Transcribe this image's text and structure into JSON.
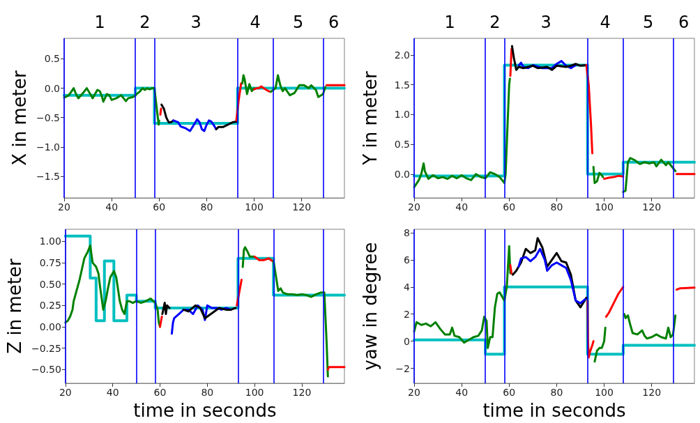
{
  "chart_data": [
    {
      "type": "line",
      "ylabel": "X in meter",
      "xlim": [
        20,
        138
      ],
      "xticks": [
        20,
        40,
        60,
        80,
        100,
        120
      ],
      "ylim": [
        -1.87,
        0.85
      ],
      "yticks": [
        {
          "value": -1.5,
          "label": "−1.5"
        },
        {
          "value": -1,
          "label": "−1.0"
        },
        {
          "value": -0.5,
          "label": "−0.5"
        },
        {
          "value": 0,
          "label": "0.0"
        },
        {
          "value": 0.5,
          "label": "0.5"
        }
      ],
      "marker": "none",
      "grid": false,
      "ref_lines": [
        {
          "axis": "x",
          "value": 20,
          "color": "#0000ff"
        },
        {
          "axis": "x",
          "value": 50,
          "color": "#0000ff"
        },
        {
          "axis": "x",
          "value": 58,
          "color": "#0000ff"
        },
        {
          "axis": "x",
          "value": 93,
          "color": "#0000ff"
        },
        {
          "axis": "x",
          "value": 108,
          "color": "#0000ff"
        },
        {
          "axis": "x",
          "value": 129,
          "color": "#0000ff"
        }
      ],
      "annotations": [
        "1",
        "2",
        "3",
        "4",
        "5",
        "6"
      ],
      "series": [
        {
          "type": "step",
          "color": "#00bfbf",
          "x": [
            20,
            50,
            58,
            93,
            138
          ],
          "values": [
            -0.12,
            0,
            -0.6,
            0,
            0
          ]
        },
        {
          "color": "#008000",
          "x": [
            20,
            22,
            24,
            25,
            26,
            28,
            29.5,
            31,
            32,
            34,
            35,
            36,
            36.5,
            38,
            39,
            40,
            42,
            44,
            46,
            47,
            49,
            50,
            52,
            53,
            54,
            55,
            56,
            57,
            58,
            59,
            59.8,
            60
          ],
          "values": [
            -0.16,
            -0.12,
            0,
            -0.1,
            -0.17,
            -0.08,
            0,
            -0.1,
            -0.17,
            -0.03,
            -0.05,
            -0.15,
            -0.23,
            -0.1,
            -0.12,
            -0.2,
            -0.17,
            -0.12,
            -0.22,
            -0.17,
            -0.15,
            -0.12,
            -0.05,
            0,
            -0.03,
            0,
            -0.02,
            0,
            0,
            -0.35,
            -0.62,
            -0.55
          ]
        },
        {
          "color": "#ff0000",
          "x": [
            60.5,
            60.8
          ],
          "values": [
            -0.45,
            -0.35
          ]
        },
        {
          "color": "#000000",
          "x": [
            61,
            62,
            63,
            64,
            65,
            66
          ],
          "values": [
            -0.28,
            -0.35,
            -0.5,
            -0.58,
            -0.58,
            -0.55
          ]
        },
        {
          "color": "#0000ff",
          "x": [
            66,
            68,
            69,
            71,
            73,
            75,
            76,
            77,
            78,
            79,
            80,
            81,
            82,
            83,
            84
          ],
          "values": [
            -0.55,
            -0.58,
            -0.65,
            -0.68,
            -0.73,
            -0.6,
            -0.53,
            -0.58,
            -0.7,
            -0.73,
            -0.62,
            -0.55,
            -0.57,
            -0.63,
            -0.7
          ]
        },
        {
          "color": "#000000",
          "x": [
            84,
            85,
            87,
            89,
            91,
            92.5
          ],
          "values": [
            -0.7,
            -0.66,
            -0.66,
            -0.62,
            -0.58,
            -0.57
          ]
        },
        {
          "color": "#ff0000",
          "x": [
            92.5,
            93.5,
            94.5
          ],
          "values": [
            -0.55,
            -0.2,
            0.08
          ]
        },
        {
          "color": "#008000",
          "x": [
            95,
            95.5,
            96,
            97,
            98,
            99,
            100
          ],
          "values": [
            0.08,
            0.22,
            0.15,
            -0.1,
            0.07,
            -0.05,
            0
          ]
        },
        {
          "color": "#ff0000",
          "x": [
            100,
            101,
            102,
            103,
            104,
            106,
            107
          ],
          "values": [
            -0.02,
            0,
            0,
            0.03,
            0,
            -0.05,
            -0.06
          ]
        },
        {
          "color": "#008000",
          "x": [
            107,
            108,
            109,
            110,
            111,
            112,
            113,
            115,
            117,
            119,
            121,
            123,
            124,
            126,
            127,
            129,
            130
          ],
          "values": [
            -0.06,
            -0.03,
            0,
            0.22,
            0.05,
            -0.05,
            0,
            -0.12,
            -0.08,
            0.05,
            0.05,
            0,
            0.05,
            -0.03,
            -0.15,
            -0.1,
            0.02
          ]
        },
        {
          "color": "#ff0000",
          "x": [
            130.5,
            138
          ],
          "values": [
            0.05,
            0.05
          ]
        }
      ]
    },
    {
      "type": "line",
      "ylabel": "Y in meter",
      "xlim": [
        20,
        138
      ],
      "xticks": [
        20,
        40,
        60,
        80,
        100,
        120
      ],
      "ylim": [
        -0.4,
        2.28
      ],
      "yticks": [
        {
          "value": 0,
          "label": "0.0"
        },
        {
          "value": 0.5,
          "label": "0.5"
        },
        {
          "value": 1,
          "label": "1.0"
        },
        {
          "value": 1.5,
          "label": "1.5"
        },
        {
          "value": 2,
          "label": "2.0"
        }
      ],
      "marker": "none",
      "grid": false,
      "ref_lines": [
        {
          "axis": "x",
          "value": 20,
          "color": "#0000ff"
        },
        {
          "axis": "x",
          "value": 50,
          "color": "#0000ff"
        },
        {
          "axis": "x",
          "value": 58,
          "color": "#0000ff"
        },
        {
          "axis": "x",
          "value": 93,
          "color": "#0000ff"
        },
        {
          "axis": "x",
          "value": 108,
          "color": "#0000ff"
        },
        {
          "axis": "x",
          "value": 129,
          "color": "#0000ff"
        }
      ],
      "annotations": [
        "1",
        "2",
        "3",
        "4",
        "5",
        "6"
      ],
      "series": [
        {
          "type": "step",
          "color": "#00bfbf",
          "x": [
            20,
            58,
            93,
            108,
            138
          ],
          "values": [
            -0.03,
            1.83,
            0,
            0.2,
            0.2
          ]
        },
        {
          "color": "#008000",
          "x": [
            20,
            22,
            23,
            24,
            24.5,
            26,
            28,
            30,
            32,
            34,
            36,
            38,
            40,
            42,
            44,
            46,
            48,
            50,
            52,
            54,
            56,
            58,
            58.5,
            59,
            59.5,
            60,
            60.3
          ],
          "values": [
            -0.22,
            -0.1,
            0,
            0.18,
            0.05,
            -0.08,
            -0.02,
            -0.07,
            -0.05,
            -0.08,
            -0.03,
            -0.07,
            -0.02,
            -0.07,
            -0.1,
            0,
            -0.05,
            -0.07,
            0.03,
            0,
            -0.05,
            -0.15,
            0,
            0.5,
            1,
            1.5,
            1.6
          ]
        },
        {
          "color": "#ff0000",
          "x": [
            60.5,
            61
          ],
          "values": [
            1.65,
            2.1
          ]
        },
        {
          "color": "#0000ff",
          "x": [
            64,
            65,
            66,
            68,
            70,
            74,
            78,
            80,
            82,
            84,
            86,
            88
          ],
          "values": [
            1.82,
            1.87,
            1.8,
            1.78,
            1.83,
            1.78,
            1.78,
            1.85,
            1.9,
            1.82,
            1.78,
            1.83
          ]
        },
        {
          "color": "#000000",
          "x": [
            61.2,
            62,
            63,
            64,
            66,
            70,
            72,
            76,
            78,
            80,
            84,
            86,
            88,
            90,
            92.5
          ],
          "values": [
            2.15,
            1.95,
            1.75,
            1.8,
            1.78,
            1.82,
            1.78,
            1.8,
            1.75,
            1.82,
            1.8,
            1.82,
            1.85,
            1.82,
            1.83
          ]
        },
        {
          "color": "#ff0000",
          "x": [
            92.5,
            93.5,
            94.5,
            95
          ],
          "values": [
            1.83,
            1.5,
            0.8,
            0.35
          ]
        },
        {
          "color": "#008000",
          "x": [
            95.5,
            96,
            97,
            98,
            99,
            99.5
          ],
          "values": [
            0.12,
            -0.15,
            -0.12,
            0.02,
            -0.02,
            -0.05
          ]
        },
        {
          "color": "#ff0000",
          "x": [
            100,
            102,
            104,
            106,
            108
          ],
          "values": [
            -0.08,
            -0.06,
            -0.05,
            -0.03,
            -0.04
          ]
        },
        {
          "color": "#008000",
          "x": [
            108,
            109,
            110,
            111,
            113,
            115,
            117,
            119,
            121,
            122,
            124,
            126,
            127,
            129,
            130
          ],
          "values": [
            -0.3,
            -0.28,
            0.2,
            0.27,
            0.23,
            0.17,
            0.2,
            0.18,
            0.2,
            0.13,
            0.24,
            0.15,
            0.2,
            0.1,
            0.05
          ]
        },
        {
          "color": "#ff0000",
          "x": [
            130.5,
            138
          ],
          "values": [
            0,
            0
          ]
        }
      ]
    },
    {
      "type": "line",
      "ylabel": "Z in meter",
      "xlabel": "time in seconds",
      "xlim": [
        20,
        138
      ],
      "xticks": [
        20,
        40,
        60,
        80,
        100,
        120
      ],
      "ylim": [
        -0.66,
        1.14
      ],
      "yticks": [
        {
          "value": -0.5,
          "label": "−0.50"
        },
        {
          "value": -0.25,
          "label": "−0.25"
        },
        {
          "value": 0,
          "label": "0.00"
        },
        {
          "value": 0.25,
          "label": "0.25"
        },
        {
          "value": 0.5,
          "label": "0.50"
        },
        {
          "value": 0.75,
          "label": "0.75"
        },
        {
          "value": 1,
          "label": "1.00"
        }
      ],
      "marker": "none",
      "grid": false,
      "ref_lines": [
        {
          "axis": "x",
          "value": 20,
          "color": "#0000ff"
        },
        {
          "axis": "x",
          "value": 50,
          "color": "#0000ff"
        },
        {
          "axis": "x",
          "value": 58,
          "color": "#0000ff"
        },
        {
          "axis": "x",
          "value": 93,
          "color": "#0000ff"
        },
        {
          "axis": "x",
          "value": 108,
          "color": "#0000ff"
        },
        {
          "axis": "x",
          "value": 129,
          "color": "#0000ff"
        }
      ],
      "series": [
        {
          "type": "step",
          "color": "#00bfbf",
          "x": [
            20,
            30.5,
            33,
            36.5,
            40.5,
            46,
            50,
            58,
            93,
            108,
            138
          ],
          "values": [
            1.06,
            0.57,
            0.07,
            0.77,
            0.07,
            0.37,
            0.3,
            0.22,
            0.8,
            0.37,
            0.37
          ]
        },
        {
          "color": "#008000",
          "x": [
            20,
            21,
            22,
            23,
            23.5,
            24,
            26,
            28,
            29.5,
            30.5,
            31.5,
            33,
            34,
            34.5,
            35,
            36,
            37,
            38,
            39,
            40.5,
            41.5,
            43,
            44,
            45,
            46,
            47,
            48.5,
            50,
            52,
            54,
            56,
            58,
            59,
            59.5,
            60
          ],
          "values": [
            0.05,
            0.07,
            0.12,
            0.2,
            0.3,
            0.35,
            0.55,
            0.8,
            0.88,
            0.95,
            0.75,
            0.7,
            0.62,
            0.5,
            0.4,
            0.2,
            0.3,
            0.45,
            0.58,
            0.65,
            0.58,
            0.3,
            0.2,
            0.15,
            0.3,
            0.3,
            0.28,
            0.3,
            0.28,
            0.3,
            0.33,
            0.28,
            0.2,
            0.05,
            0
          ]
        },
        {
          "color": "#ff0000",
          "x": [
            60,
            60.8
          ],
          "values": [
            0,
            0.12
          ]
        },
        {
          "color": "#000000",
          "x": [
            61,
            62,
            62.5,
            63,
            64
          ],
          "values": [
            0.15,
            0.28,
            0.15,
            0.25,
            0.22
          ]
        },
        {
          "color": "#0000ff",
          "x": [
            65,
            65.5,
            66,
            68,
            70,
            72,
            74,
            76,
            78,
            79,
            80,
            82,
            84,
            86,
            88,
            90
          ],
          "values": [
            -0.08,
            0.05,
            0.1,
            0.15,
            0.2,
            0.2,
            0.15,
            0.25,
            0.2,
            0.08,
            0.25,
            0.22,
            0.22,
            0.2,
            0.22,
            0.2
          ]
        },
        {
          "color": "#000000",
          "x": [
            70,
            72,
            75,
            77,
            79,
            85,
            88,
            90,
            92
          ],
          "values": [
            0.2,
            0.18,
            0.25,
            0.22,
            0.1,
            0.22,
            0.2,
            0.2,
            0.22
          ]
        },
        {
          "color": "#ff0000",
          "x": [
            92.5,
            93.5,
            94.5
          ],
          "values": [
            0.25,
            0.4,
            0.55
          ]
        },
        {
          "color": "#008000",
          "x": [
            95,
            95.5,
            96,
            97,
            98,
            99,
            99.8
          ],
          "values": [
            0.7,
            0.9,
            0.93,
            0.88,
            0.82,
            0.82,
            0.82
          ]
        },
        {
          "color": "#ff0000",
          "x": [
            100,
            102,
            104,
            106,
            107.5
          ],
          "values": [
            0.82,
            0.78,
            0.78,
            0.8,
            0.77
          ]
        },
        {
          "color": "#008000",
          "x": [
            108,
            109,
            110,
            111,
            112,
            114,
            116,
            118,
            120,
            122,
            124,
            126,
            128,
            129.5,
            130,
            130.5,
            131
          ],
          "values": [
            0.77,
            0.6,
            0.42,
            0.45,
            0.4,
            0.38,
            0.38,
            0.37,
            0.38,
            0.37,
            0.35,
            0.38,
            0.4,
            0.4,
            0.1,
            -0.2,
            -0.58
          ]
        },
        {
          "color": "#ff0000",
          "x": [
            131,
            131.5,
            138
          ],
          "values": [
            -0.5,
            -0.47,
            -0.47
          ]
        }
      ]
    },
    {
      "type": "line",
      "ylabel": "yaw in degree",
      "xlabel": "time in seconds",
      "xlim": [
        20,
        138
      ],
      "xticks": [
        20,
        40,
        60,
        80,
        100,
        120
      ],
      "ylim": [
        -3.1,
        8.25
      ],
      "yticks": [
        {
          "value": -2,
          "label": "−2"
        },
        0,
        2,
        4,
        6,
        8
      ],
      "marker": "none",
      "grid": false,
      "ref_lines": [
        {
          "axis": "x",
          "value": 20,
          "color": "#0000ff"
        },
        {
          "axis": "x",
          "value": 50,
          "color": "#0000ff"
        },
        {
          "axis": "x",
          "value": 58,
          "color": "#0000ff"
        },
        {
          "axis": "x",
          "value": 93,
          "color": "#0000ff"
        },
        {
          "axis": "x",
          "value": 108,
          "color": "#0000ff"
        },
        {
          "axis": "x",
          "value": 129,
          "color": "#0000ff"
        }
      ],
      "series": [
        {
          "type": "step",
          "color": "#00bfbf",
          "x": [
            20,
            50,
            58,
            93,
            108,
            138
          ],
          "values": [
            0.1,
            -0.95,
            4,
            -0.95,
            -0.3,
            -0.3
          ]
        },
        {
          "color": "#008000",
          "x": [
            20,
            21,
            23,
            25,
            27,
            29,
            31,
            33,
            35,
            36,
            37,
            39,
            41,
            43,
            45,
            47,
            48.5,
            49.5,
            50.5,
            51,
            52,
            53,
            54,
            55,
            56,
            57,
            58,
            59,
            60,
            60.5
          ],
          "values": [
            0.7,
            1.4,
            1.2,
            1.3,
            1.1,
            1.4,
            0.9,
            0.5,
            0.5,
            1,
            0.4,
            0.3,
            -0.1,
            0.1,
            0.3,
            0.4,
            0.8,
            1.8,
            1.5,
            -0.5,
            0.3,
            0.3,
            2.5,
            3.5,
            3.6,
            3.3,
            3,
            4,
            7,
            5
          ]
        },
        {
          "color": "#ff0000",
          "x": [
            60.5,
            61
          ],
          "values": [
            5.6,
            5
          ]
        },
        {
          "color": "#000000",
          "x": [
            61.5,
            63,
            65,
            67,
            69,
            71,
            72,
            74,
            76,
            78,
            80,
            82,
            84,
            86,
            88,
            90,
            92.5
          ],
          "values": [
            4.9,
            5.2,
            5.8,
            6.8,
            6.5,
            6.7,
            7.6,
            6.9,
            5.5,
            6,
            6.5,
            5.9,
            5.8,
            4.9,
            3,
            2.5,
            3.2
          ]
        },
        {
          "color": "#0000ff",
          "x": [
            64,
            65,
            67,
            69,
            71,
            73,
            75,
            76,
            78,
            80,
            82,
            84,
            86,
            88,
            90,
            92
          ],
          "values": [
            5.5,
            6.1,
            6.2,
            5.9,
            6.2,
            6.8,
            6,
            5.2,
            5.6,
            5.8,
            5.6,
            5.4,
            4.5,
            3,
            2.8,
            3.1
          ]
        },
        {
          "color": "#ff0000",
          "x": [
            93,
            93.2,
            93.5,
            94,
            95,
            95.5
          ],
          "values": [
            3,
            0,
            -1.2,
            -0.8,
            -0.3,
            0
          ]
        },
        {
          "color": "#008000",
          "x": [
            96,
            97,
            98,
            99,
            100,
            100.5
          ],
          "values": [
            -1.5,
            -0.7,
            -0.5,
            -0.5,
            0,
            1
          ]
        },
        {
          "color": "#ff0000",
          "x": [
            100.8,
            102,
            104,
            106,
            108
          ],
          "values": [
            1.8,
            2.1,
            2.8,
            3.5,
            4
          ]
        },
        {
          "color": "#008000",
          "x": [
            108.5,
            109,
            110,
            111,
            112,
            114,
            116,
            117,
            118,
            120,
            122,
            124,
            126,
            127,
            128,
            129,
            130
          ],
          "values": [
            2,
            1.7,
            1.9,
            1.2,
            0.6,
            0.5,
            0.8,
            0.4,
            0.2,
            0.3,
            0.5,
            0.3,
            0.2,
            1,
            0.3,
            0.5,
            1.9
          ]
        },
        {
          "color": "#ff0000",
          "x": [
            130.5,
            132,
            138
          ],
          "values": [
            3.8,
            3.9,
            3.95
          ]
        }
      ]
    }
  ]
}
